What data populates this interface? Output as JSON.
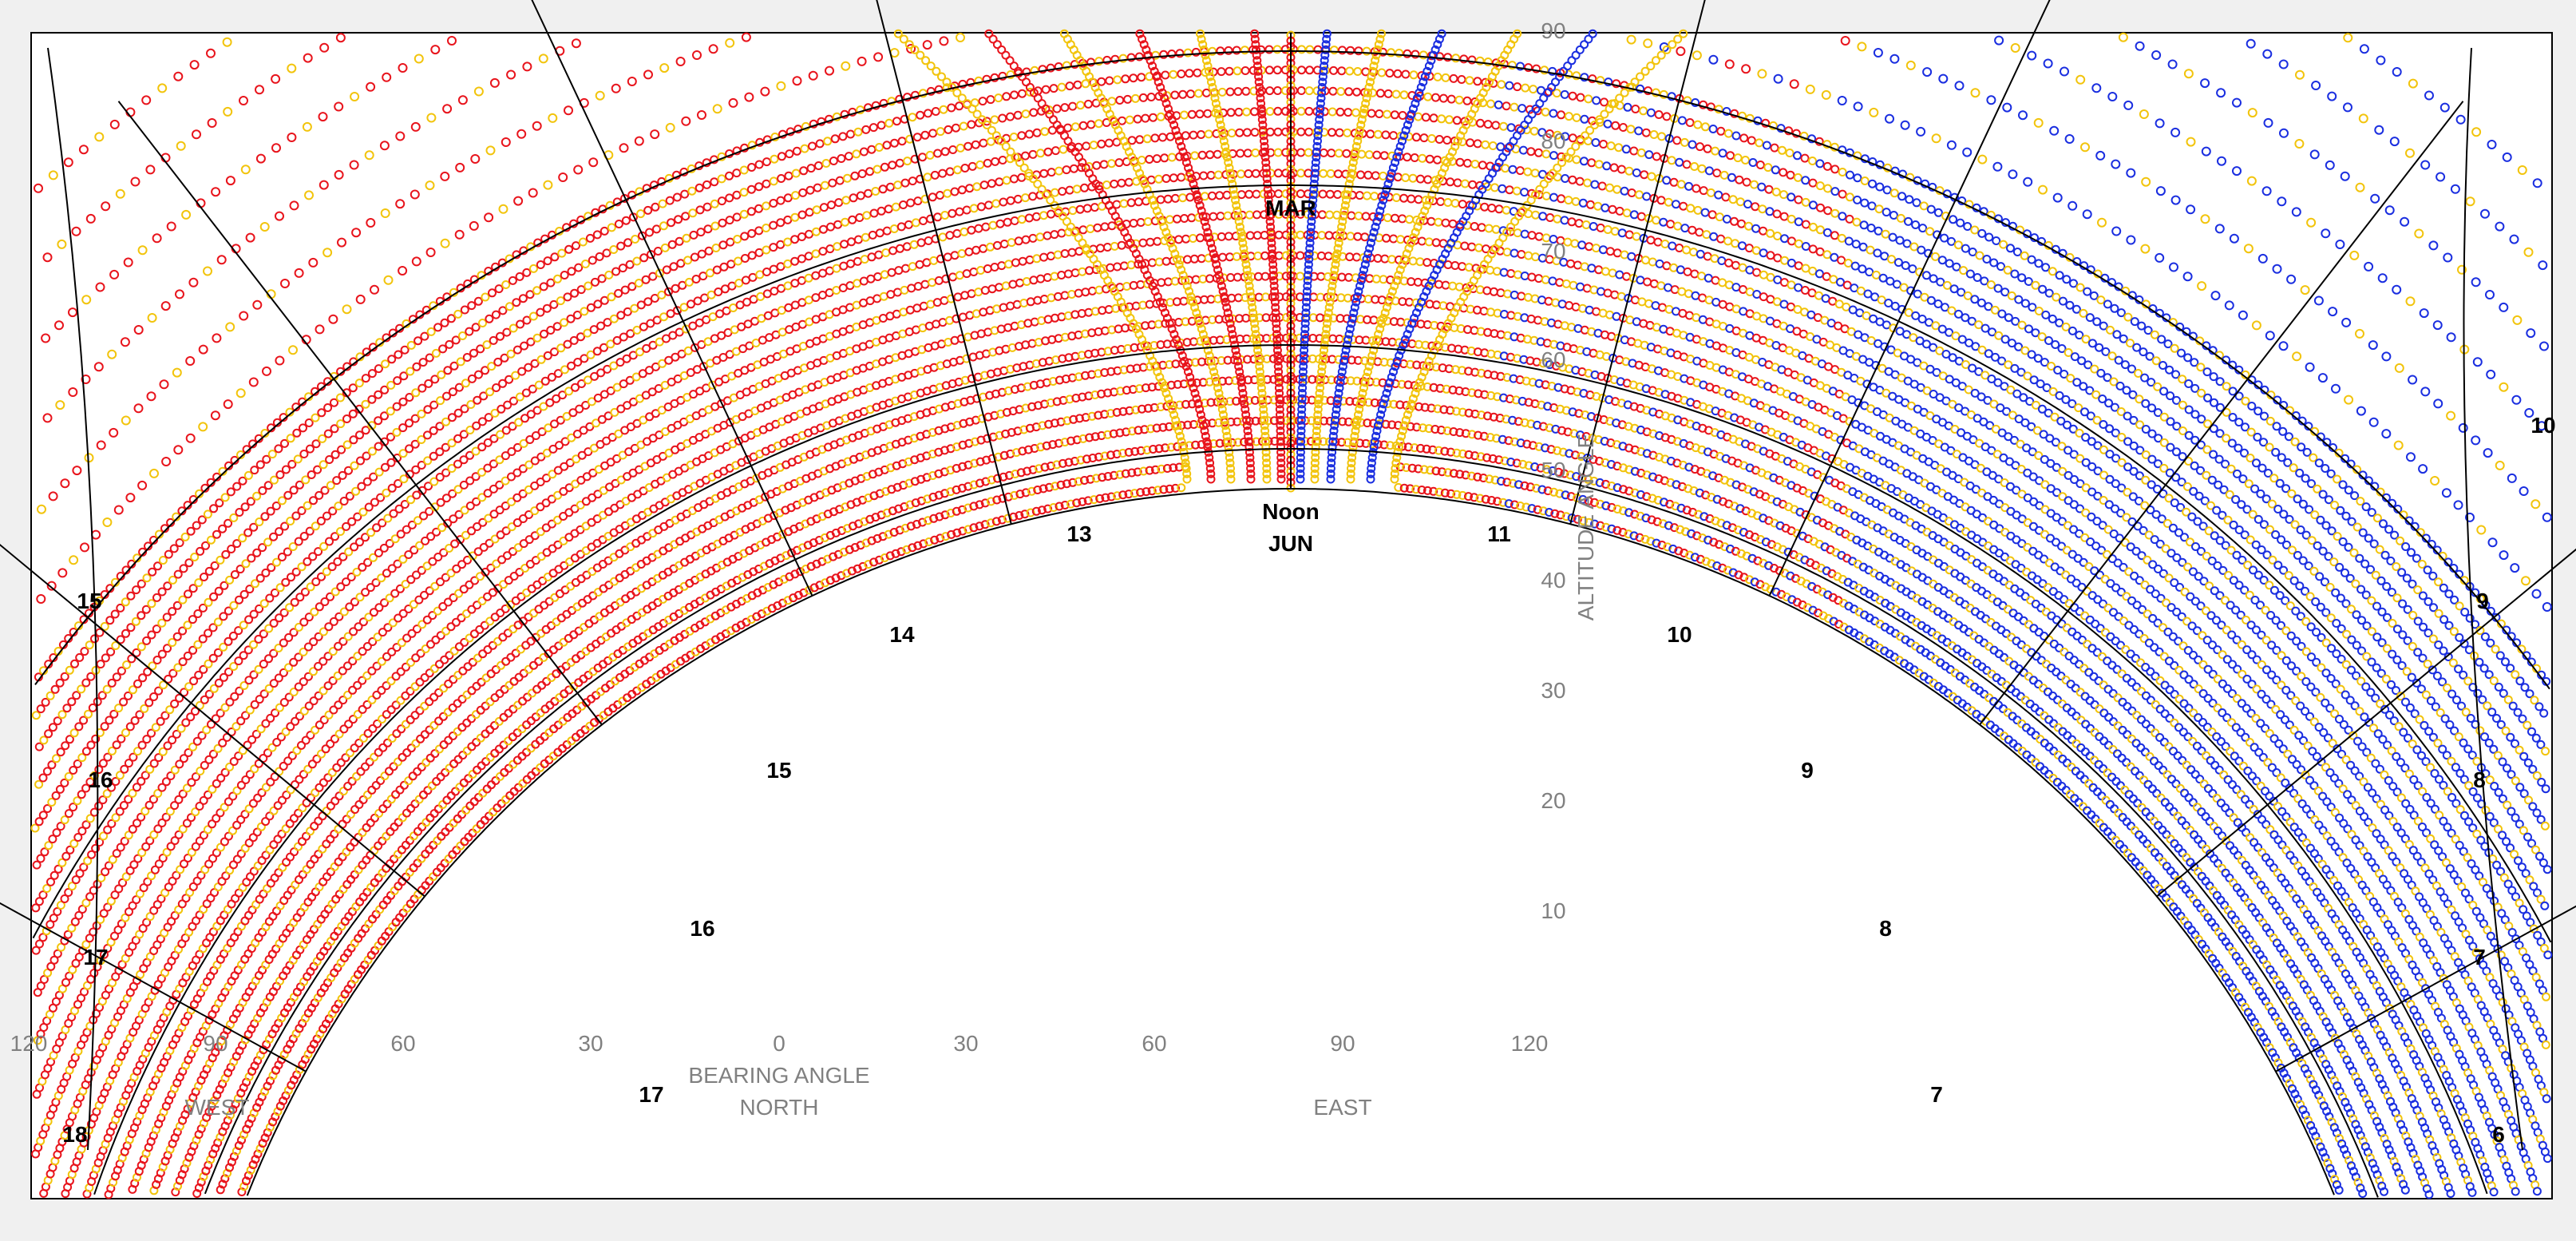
{
  "chart_data": {
    "type": "scatter",
    "title": "",
    "x_tick_labels": [
      "120",
      "90",
      "60",
      "30",
      "0",
      "30",
      "60",
      "90",
      "120"
    ],
    "y_tick_labels": [
      "90",
      "80",
      "70",
      "60",
      "50",
      "40",
      "30",
      "20",
      "10"
    ],
    "axis_labels": {
      "altitude": "ALTITUDE ANGLE",
      "bearing": "BEARING ANGLE",
      "north": "NORTH",
      "east": "EAST",
      "west": "WEST"
    },
    "month_labels": {
      "mar": "MAR",
      "noon": "Noon",
      "jun": "JUN"
    },
    "hour_labels_left": [
      "13",
      "14",
      "15",
      "16",
      "17",
      "15",
      "16",
      "17",
      "18"
    ],
    "hour_labels_right": [
      "11",
      "10",
      "9",
      "8",
      "7",
      "10",
      "9",
      "8",
      "7",
      "6"
    ],
    "altitude_range": [
      0,
      90
    ],
    "bearing_range": [
      -120,
      120
    ],
    "colors": {
      "hot": "#e8141c",
      "warm": "#f2c40c",
      "cool": "#1a2ee0",
      "grid": "#000000"
    }
  }
}
